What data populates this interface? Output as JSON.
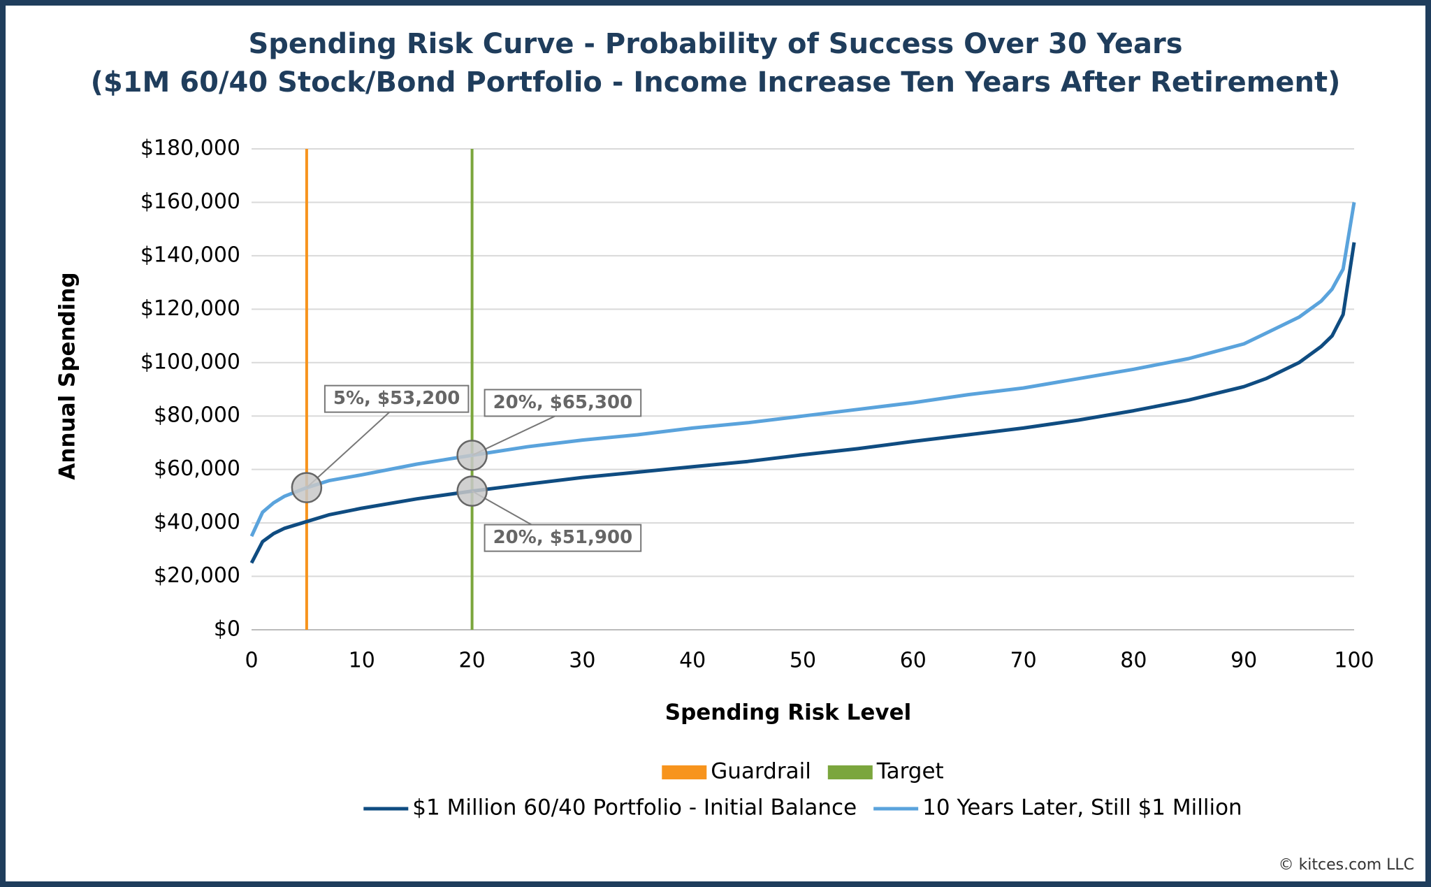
{
  "chart_data": {
    "type": "line",
    "title": [
      "Spending Risk Curve - Probability of Success Over 30 Years",
      "($1M 60/40 Stock/Bond Portfolio - Income Increase Ten Years After Retirement)"
    ],
    "x_label": "Spending Risk Level",
    "y_label": "Annual Spending",
    "x": [
      0,
      1,
      2,
      3,
      5,
      7,
      10,
      15,
      20,
      25,
      30,
      35,
      40,
      45,
      50,
      55,
      60,
      65,
      70,
      75,
      80,
      85,
      90,
      92,
      95,
      97,
      98,
      99,
      100
    ],
    "series": [
      {
        "name": "$1 Million 60/40 Portfolio - Initial Balance",
        "color": "#0f4c81",
        "values": [
          25000,
          33000,
          36000,
          38000,
          40500,
          43000,
          45500,
          49000,
          51900,
          54500,
          57000,
          59000,
          61000,
          63000,
          65500,
          67800,
          70500,
          73000,
          75500,
          78500,
          82000,
          86000,
          91000,
          94000,
          100000,
          106000,
          110000,
          118000,
          145000
        ]
      },
      {
        "name": "10 Years Later, Still $1 Million",
        "color": "#5aa3dc",
        "values": [
          35000,
          44000,
          47500,
          50000,
          53200,
          55800,
          58000,
          62000,
          65300,
          68500,
          71000,
          73000,
          75500,
          77500,
          80000,
          82500,
          85000,
          88000,
          90500,
          94000,
          97500,
          101500,
          107000,
          111000,
          117000,
          123000,
          127500,
          135000,
          160000
        ]
      }
    ],
    "vlines": [
      {
        "name": "Guardrail",
        "color": "#f7941d",
        "x": 5
      },
      {
        "name": "Target",
        "color": "#7ba63d",
        "x": 20
      }
    ],
    "annotations": [
      {
        "text": "5%, $53,200",
        "x": 5,
        "y": 53200
      },
      {
        "text": "20%, $65,300",
        "x": 20,
        "y": 65300
      },
      {
        "text": "20%, $51,900",
        "x": 20,
        "y": 51900
      }
    ],
    "xlim": [
      0,
      100
    ],
    "xticks": [
      0,
      10,
      20,
      30,
      40,
      50,
      60,
      70,
      80,
      90,
      100
    ],
    "ylim": [
      0,
      180000
    ],
    "yticks": [
      {
        "value": 0,
        "label": "$0"
      },
      {
        "value": 20000,
        "label": "$20,000"
      },
      {
        "value": 40000,
        "label": "$40,000"
      },
      {
        "value": 60000,
        "label": "$60,000"
      },
      {
        "value": 80000,
        "label": "$80,000"
      },
      {
        "value": 100000,
        "label": "$100,000"
      },
      {
        "value": 120000,
        "label": "$120,000"
      },
      {
        "value": 140000,
        "label": "$140,000"
      },
      {
        "value": 160000,
        "label": "$160,000"
      },
      {
        "value": 180000,
        "label": "$180,000"
      }
    ],
    "grid": true,
    "legend_position": "bottom",
    "source": "© kitces.com LLC"
  }
}
